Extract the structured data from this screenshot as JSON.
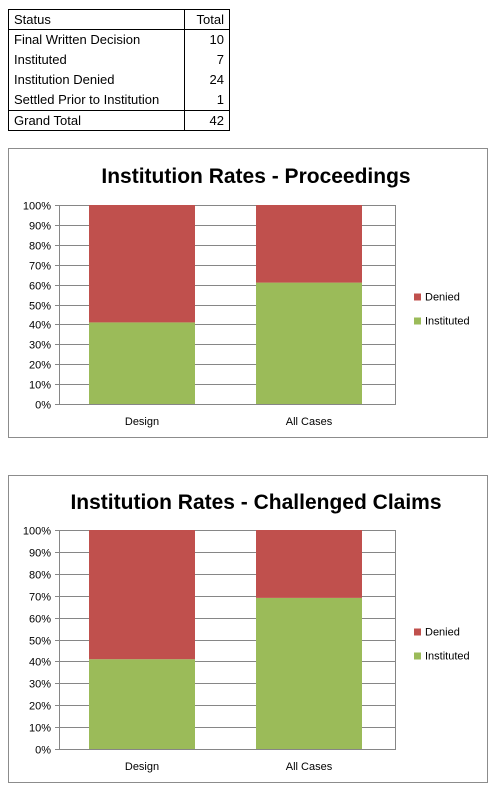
{
  "table": {
    "headers": [
      "Status",
      "Total"
    ],
    "rows": [
      {
        "status": "Final Written Decision",
        "total": "10"
      },
      {
        "status": "Instituted",
        "total": "7"
      },
      {
        "status": "Institution Denied",
        "total": "24"
      },
      {
        "status": "Settled Prior to Institution",
        "total": "1"
      }
    ],
    "grand_total": {
      "label": "Grand Total",
      "value": "42"
    }
  },
  "colors": {
    "instituted": "#9bbb59",
    "denied": "#c0504d",
    "grid": "#868686"
  },
  "chart_data": [
    {
      "type": "bar",
      "stacked": true,
      "title": "Institution Rates - Proceedings",
      "categories": [
        "Design",
        "All Cases"
      ],
      "series": [
        {
          "name": "Instituted",
          "values": [
            41,
            61
          ]
        },
        {
          "name": "Denied",
          "values": [
            59,
            39
          ]
        }
      ],
      "yticks": [
        "0%",
        "10%",
        "20%",
        "30%",
        "40%",
        "50%",
        "60%",
        "70%",
        "80%",
        "90%",
        "100%"
      ],
      "ylim": [
        0,
        100
      ],
      "grid": true,
      "legend": "right"
    },
    {
      "type": "bar",
      "stacked": true,
      "title": "Institution Rates - Challenged Claims",
      "categories": [
        "Design",
        "All Cases"
      ],
      "series": [
        {
          "name": "Instituted",
          "values": [
            41,
            69
          ]
        },
        {
          "name": "Denied",
          "values": [
            59,
            31
          ]
        }
      ],
      "yticks": [
        "0%",
        "10%",
        "20%",
        "30%",
        "40%",
        "50%",
        "60%",
        "70%",
        "80%",
        "90%",
        "100%"
      ],
      "ylim": [
        0,
        100
      ],
      "grid": true,
      "legend": "right"
    }
  ]
}
